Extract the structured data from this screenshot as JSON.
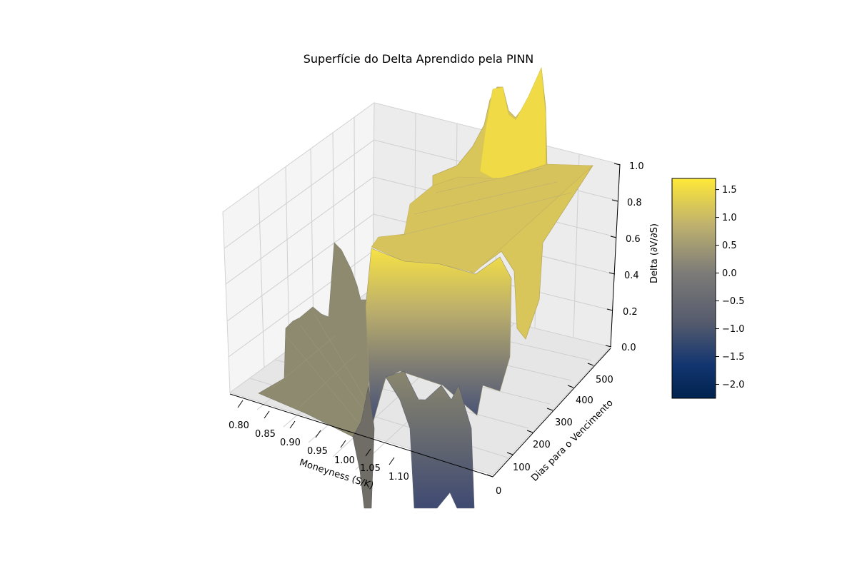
{
  "chart_data": {
    "type": "surface3d",
    "title": "Superfície do Delta Aprendido pela PINN",
    "xlabel": "Moneyness (S/K)",
    "ylabel": "Dias para o Vencimento",
    "zlabel": "Delta (∂V/∂S)",
    "x_ticks": [
      "0.80",
      "0.85",
      "0.90",
      "0.95",
      "1.00",
      "1.05",
      "1.10"
    ],
    "y_ticks": [
      "0",
      "100",
      "200",
      "300",
      "400",
      "500"
    ],
    "z_ticks": [
      "0.0",
      "0.2",
      "0.4",
      "0.6",
      "0.8",
      "1.0"
    ],
    "xlim": [
      0.8,
      1.2
    ],
    "ylim": [
      0,
      550
    ],
    "zlim": [
      0,
      1
    ],
    "grid": true,
    "colormap": "cividis",
    "colorbar": {
      "ticks": [
        "1.5",
        "1.0",
        "0.5",
        "0.0",
        "−0.5",
        "−1.0",
        "−1.5",
        "−2.0"
      ],
      "range": [
        -2.25,
        1.7
      ]
    },
    "surface_summary": {
      "deep_otm_delta": 0.0,
      "deep_itm_delta": 1.0,
      "peak_delta": 1.7,
      "min_delta": -2.2
    }
  }
}
